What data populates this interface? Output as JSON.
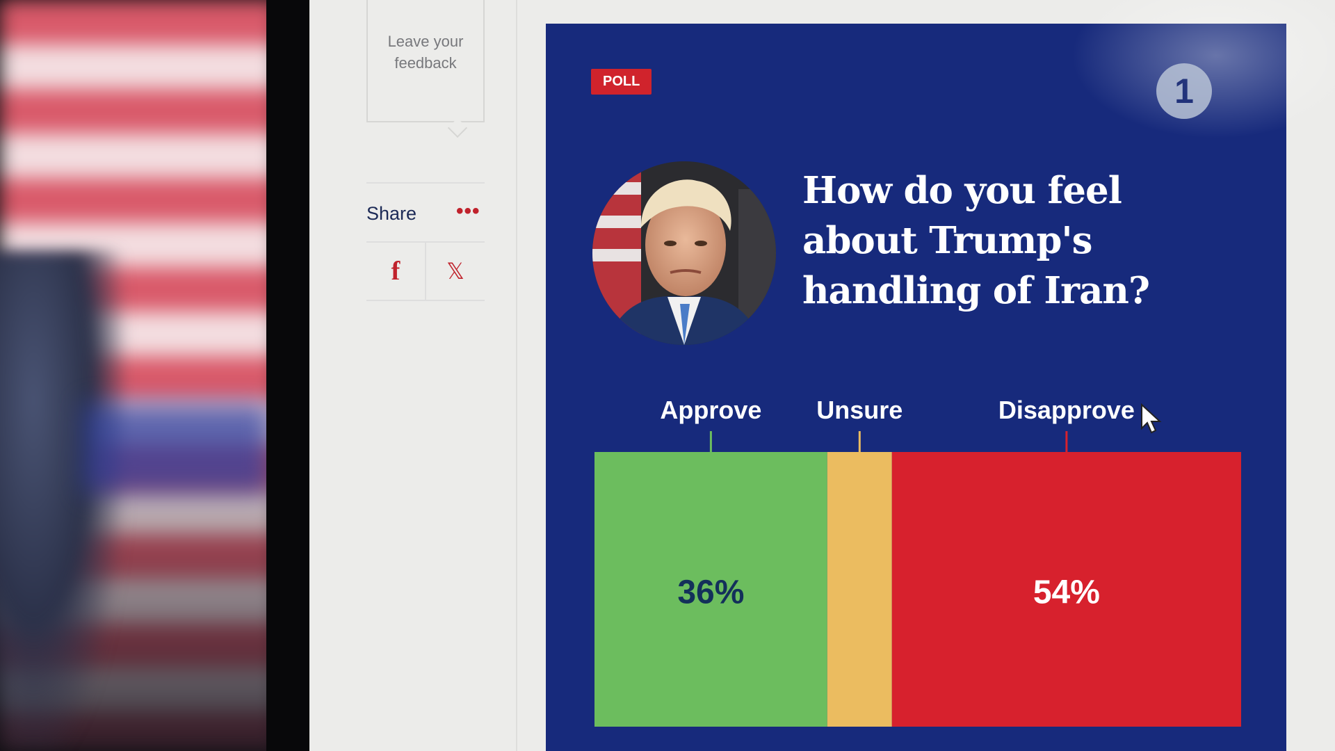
{
  "sidebar": {
    "feedback_label": "Leave your feedback",
    "share_label": "Share",
    "more_glyph": "•••",
    "facebook_glyph": "f",
    "x_glyph": "𝕏"
  },
  "card": {
    "badge": "POLL",
    "logo_glyph": "1",
    "question": "How do you feel about Trump's handling of Iran?"
  },
  "chart_data": {
    "type": "bar",
    "orientation": "horizontal-stacked",
    "categories": [
      "Approve",
      "Unsure",
      "Disapprove"
    ],
    "values": [
      36,
      10,
      54
    ],
    "value_labels": [
      "36%",
      "",
      "54%"
    ],
    "colors": [
      "#6cbd5e",
      "#ebbc60",
      "#d7212d"
    ],
    "label_colors": [
      "#13305a",
      "#13305a",
      "#ffffff"
    ],
    "xlim": [
      0,
      100
    ],
    "title": "",
    "xlabel": "",
    "ylabel": ""
  },
  "colors": {
    "card_bg": "#172a7c",
    "accent_red": "#d0232c"
  }
}
